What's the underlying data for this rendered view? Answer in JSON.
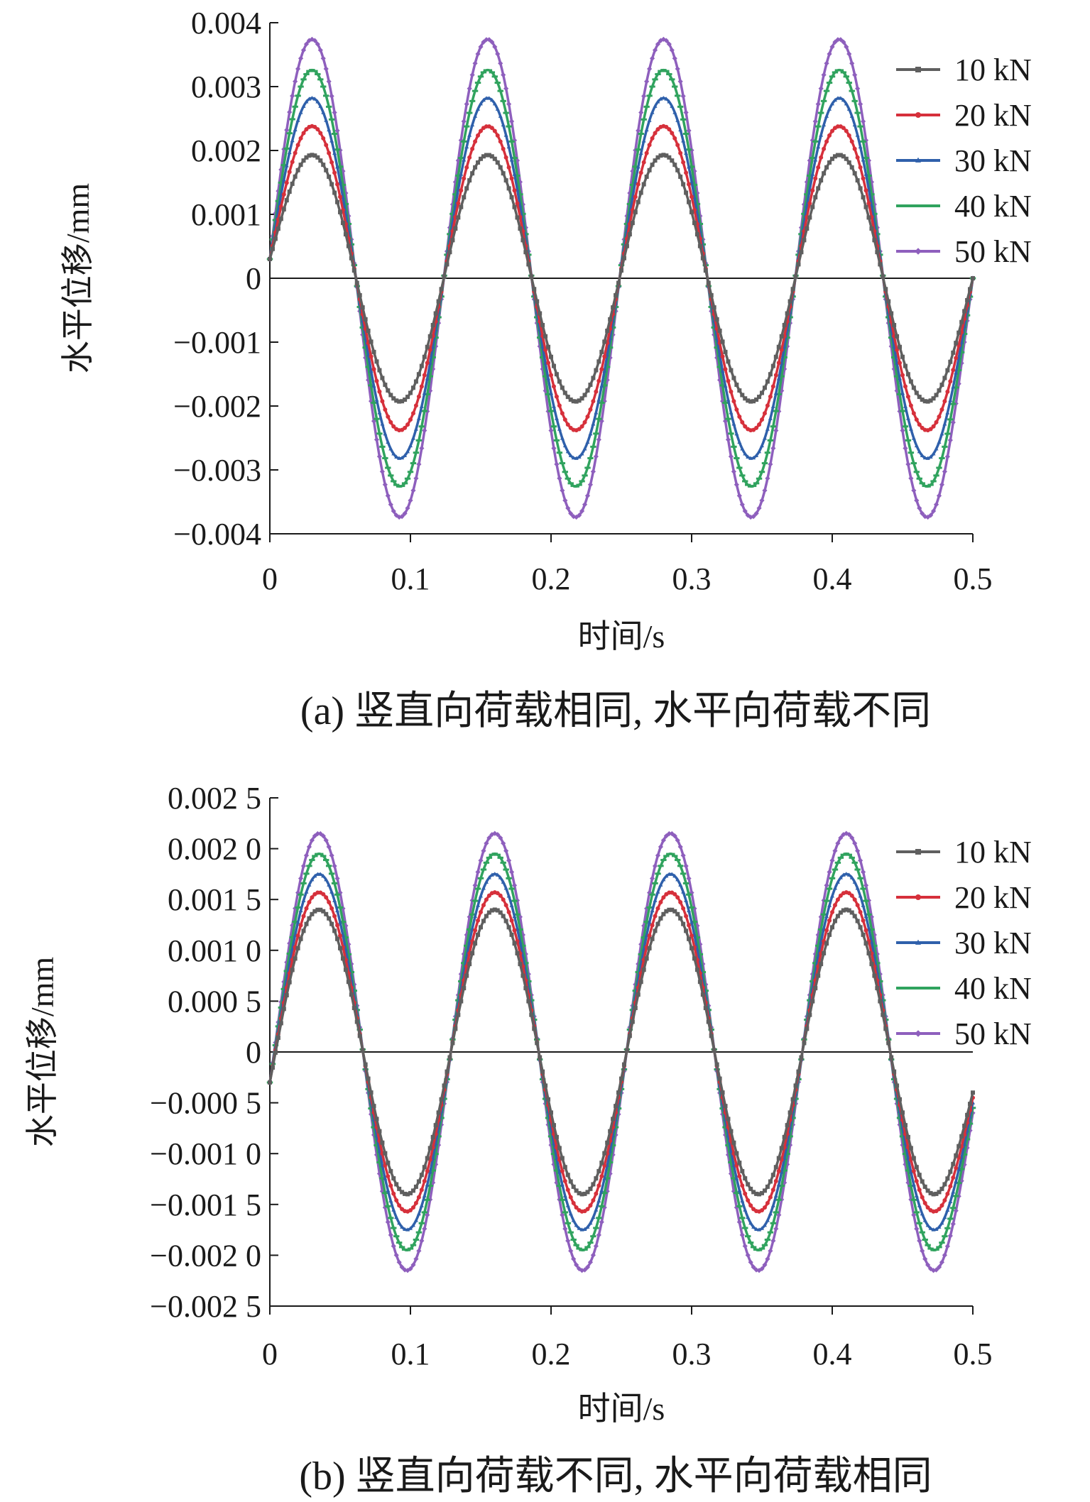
{
  "chart_data": [
    {
      "type": "line",
      "caption": "(a) 竖直向荷载相同, 水平向荷载不同",
      "xlabel": "时间/s",
      "ylabel": "水平位移/mm",
      "xlim": [
        0,
        0.5
      ],
      "ylim": [
        -0.004,
        0.004
      ],
      "xticks": [
        "0",
        "0.1",
        "0.2",
        "0.3",
        "0.4",
        "0.5"
      ],
      "yticks": [
        "0.004",
        "0.003",
        "0.002",
        "0.001",
        "0",
        "−0.001",
        "−0.002",
        "−0.003",
        "−0.004"
      ],
      "legend_position": "top-right",
      "grid": false,
      "period": 0.125,
      "peak_times": [
        0.03,
        0.155,
        0.28,
        0.405
      ],
      "trough_times": [
        0.0925,
        0.2175,
        0.3425,
        0.4675
      ],
      "series": [
        {
          "name": "10 kN",
          "color": "#5f5f5f",
          "amplitude": 0.00193,
          "y_at_0": 0.0003,
          "y_at_end": 0.0
        },
        {
          "name": "20 kN",
          "color": "#d6303b",
          "amplitude": 0.00238,
          "y_at_0": 0.0003,
          "y_at_end": 0.0
        },
        {
          "name": "30 kN",
          "color": "#2f60ab",
          "amplitude": 0.00282,
          "y_at_0": 0.0003,
          "y_at_end": 0.0
        },
        {
          "name": "40 kN",
          "color": "#30a35e",
          "amplitude": 0.00326,
          "y_at_0": 0.0003,
          "y_at_end": 0.0
        },
        {
          "name": "50 kN",
          "color": "#8e5fbd",
          "amplitude": 0.00374,
          "y_at_0": 0.0003,
          "y_at_end": 0.0
        }
      ]
    },
    {
      "type": "line",
      "caption": "(b) 竖直向荷载不同, 水平向荷载相同",
      "xlabel": "时间/s",
      "ylabel": "水平位移/mm",
      "xlim": [
        0,
        0.5
      ],
      "ylim": [
        -0.0025,
        0.0025
      ],
      "xticks": [
        "0",
        "0.1",
        "0.2",
        "0.3",
        "0.4",
        "0.5"
      ],
      "yticks": [
        "0.002 5",
        "0.002 0",
        "0.001 5",
        "0.001 0",
        "0.000 5",
        "0",
        "−0.000 5",
        "−0.001 0",
        "−0.001 5",
        "−0.002 0",
        "−0.002 5"
      ],
      "legend_position": "top-right",
      "grid": false,
      "period": 0.125,
      "peak_times": [
        0.035,
        0.16,
        0.285,
        0.41
      ],
      "trough_times": [
        0.0975,
        0.2225,
        0.3475,
        0.4725
      ],
      "series": [
        {
          "name": "10 kN",
          "color": "#5f5f5f",
          "amplitude": 0.0014,
          "y_at_0": -0.0003,
          "y_at_end": -0.0004
        },
        {
          "name": "20 kN",
          "color": "#d6303b",
          "amplitude": 0.00157,
          "y_at_0": -0.0003,
          "y_at_end": -0.00045
        },
        {
          "name": "30 kN",
          "color": "#2f60ab",
          "amplitude": 0.00175,
          "y_at_0": -0.0003,
          "y_at_end": -0.0005
        },
        {
          "name": "40 kN",
          "color": "#30a35e",
          "amplitude": 0.00195,
          "y_at_0": -0.0003,
          "y_at_end": -0.00055
        },
        {
          "name": "50 kN",
          "color": "#8e5fbd",
          "amplitude": 0.00215,
          "y_at_0": -0.0003,
          "y_at_end": -0.0006
        }
      ]
    }
  ]
}
